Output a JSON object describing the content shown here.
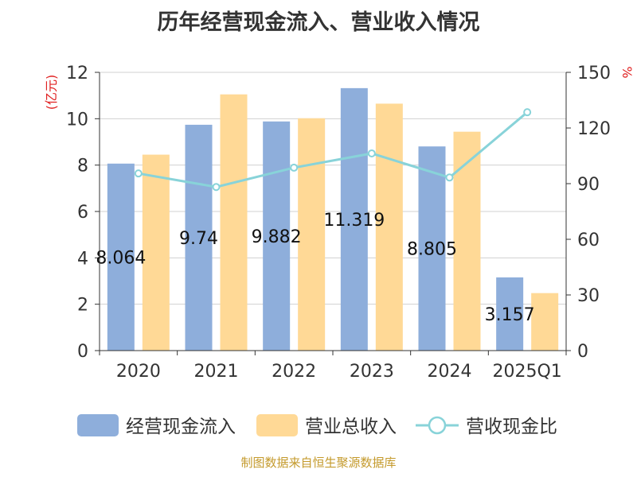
{
  "chart_data": {
    "type": "bar",
    "title": "历年经营现金流入、营业收入情况",
    "categories": [
      "2020",
      "2021",
      "2022",
      "2023",
      "2024",
      "2025Q1"
    ],
    "series": [
      {
        "name": "经营现金流入",
        "kind": "bar",
        "axis": "left",
        "color": "#8eaedb",
        "values": [
          8.064,
          9.74,
          9.882,
          11.319,
          8.805,
          3.157
        ],
        "labels": [
          "8.064",
          "9.74",
          "9.882",
          "11.319",
          "8.805",
          "3.157"
        ]
      },
      {
        "name": "营业总收入",
        "kind": "bar",
        "axis": "left",
        "color": "#ffd996",
        "values": [
          8.45,
          11.05,
          10.02,
          10.65,
          9.44,
          2.48
        ]
      },
      {
        "name": "营收现金比",
        "kind": "line",
        "axis": "right",
        "color": "#88d3d9",
        "values": [
          95.5,
          88.2,
          98.6,
          106.3,
          93.3,
          128.5
        ]
      }
    ],
    "y_left": {
      "label": "(亿元)",
      "min": 0,
      "max": 12,
      "ticks": [
        0,
        2,
        4,
        6,
        8,
        10,
        12
      ]
    },
    "y_right": {
      "label": "%",
      "min": 0,
      "max": 150,
      "ticks": [
        0,
        30,
        60,
        90,
        120,
        150
      ]
    },
    "grid": true,
    "legend": "bottom"
  },
  "footer": "制图数据来自恒生聚源数据库"
}
